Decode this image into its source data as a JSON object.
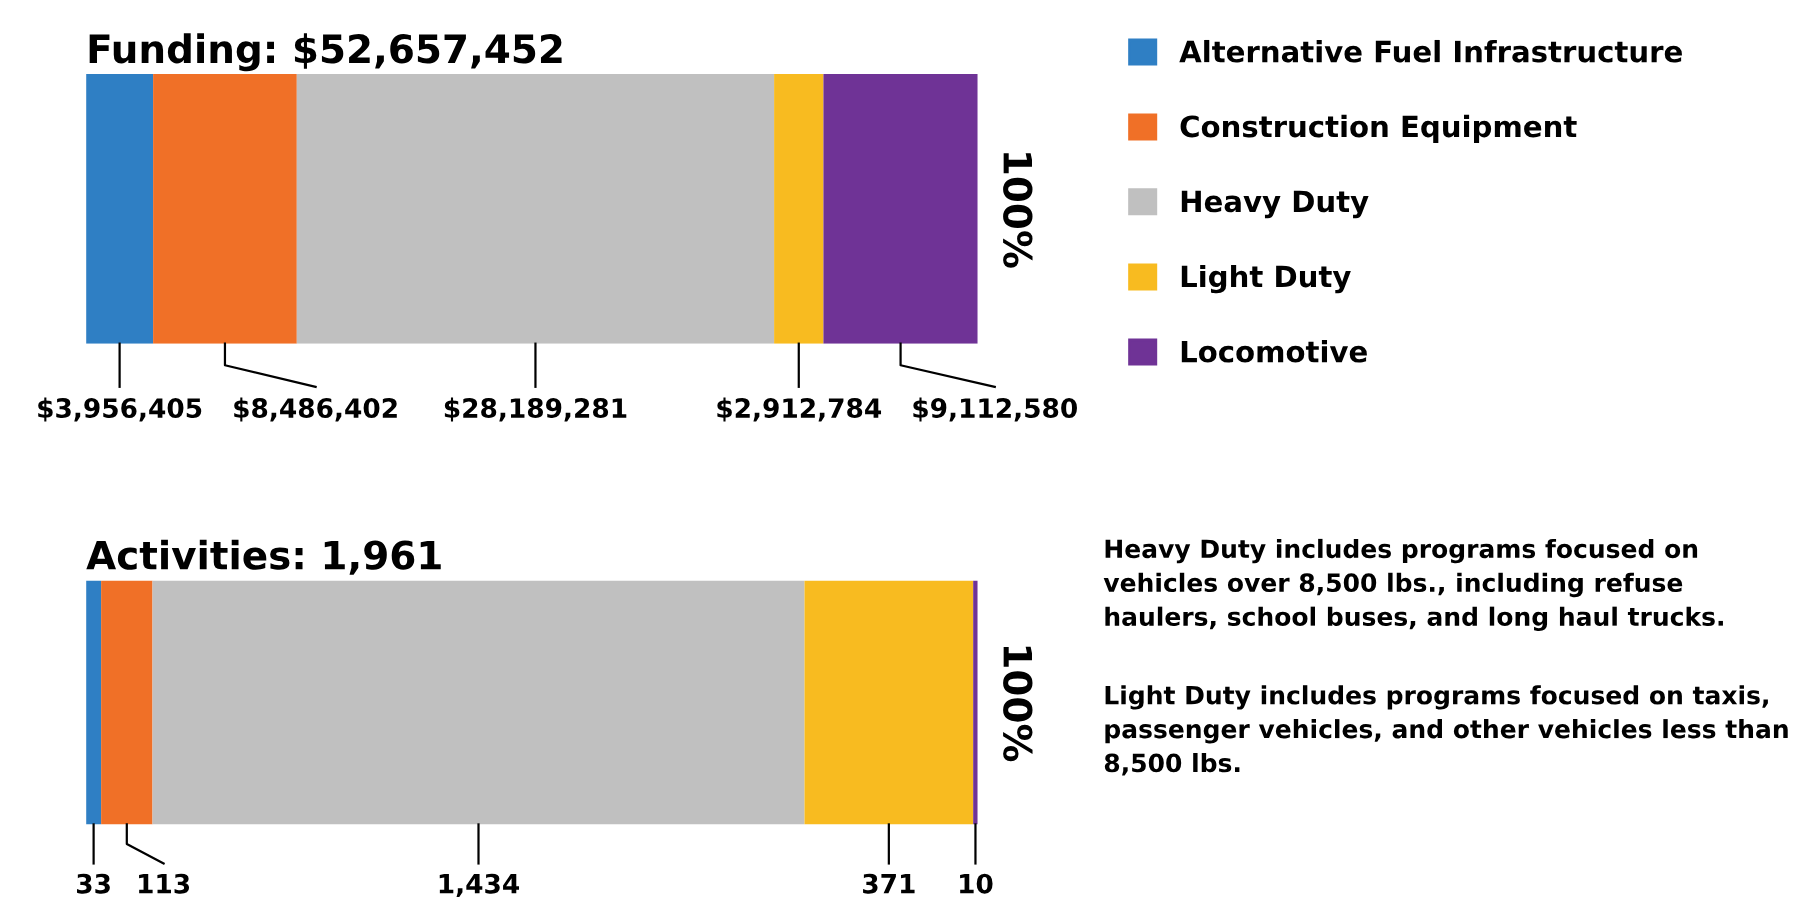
{
  "chart_data": [
    {
      "type": "bar",
      "orientation": "horizontal",
      "stacked": true,
      "title": "Funding: $52,657,452",
      "categories": [
        null
      ],
      "tick_labels": false,
      "grid": false,
      "legend": "right",
      "annotations": [
        "100%"
      ],
      "series": [
        {
          "name": "Alternative Fuel Infrastructure",
          "color": "#2f7fc4",
          "values": [
            3956405
          ],
          "value_labels": [
            "$3,956,405"
          ]
        },
        {
          "name": "Construction Equipment",
          "color": "#f07027",
          "values": [
            8486402
          ],
          "value_labels": [
            "$8,486,402"
          ]
        },
        {
          "name": "Heavy Duty",
          "color": "#c0c0c0",
          "values": [
            28189281
          ],
          "value_labels": [
            "$28,189,281"
          ]
        },
        {
          "name": "Light Duty",
          "color": "#f8bb20",
          "values": [
            2912784
          ],
          "value_labels": [
            "$2,912,784"
          ]
        },
        {
          "name": "Locomotive",
          "color": "#6f3396",
          "values": [
            9112580
          ],
          "value_labels": [
            "$9,112,580"
          ]
        }
      ]
    },
    {
      "type": "bar",
      "orientation": "horizontal",
      "stacked": true,
      "title": "Activities: 1,961",
      "categories": [
        null
      ],
      "tick_labels": false,
      "grid": false,
      "annotations": [
        "100%",
        "Heavy Duty includes programs focused on vehicles over 8,500 lbs., including refuse haulers, school buses, and long haul trucks.",
        "Light Duty includes programs focused on taxis, passenger vehicles, and other vehicles less than 8,500 lbs."
      ],
      "series": [
        {
          "color": "#2f7fc4",
          "values": [
            33
          ],
          "value_labels": [
            "33"
          ]
        },
        {
          "color": "#f07027",
          "values": [
            113
          ],
          "value_labels": [
            "113"
          ]
        },
        {
          "color": "#c0c0c0",
          "values": [
            1434
          ],
          "value_labels": [
            "1,434"
          ]
        },
        {
          "color": "#f8bb20",
          "values": [
            371
          ],
          "value_labels": [
            "371"
          ]
        },
        {
          "color": "#6f3396",
          "values": [
            10
          ],
          "value_labels": [
            "10"
          ]
        }
      ]
    }
  ]
}
